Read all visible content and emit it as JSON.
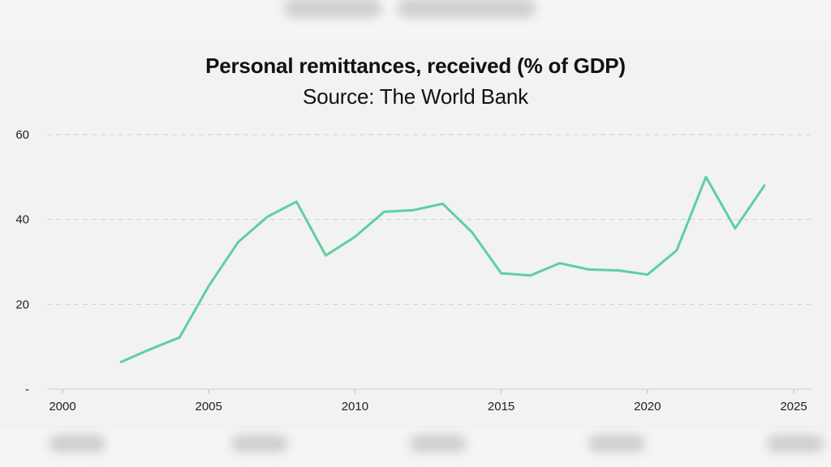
{
  "chart_data": {
    "type": "line",
    "title": "Personal remittances, received (% of GDP)",
    "subtitle": "Source: The World Bank",
    "xlabel": "",
    "ylabel": "",
    "xlim": [
      2000,
      2025
    ],
    "ylim": [
      0,
      60
    ],
    "x_ticks": [
      "2000",
      "2005",
      "2010",
      "2015",
      "2020",
      "2025"
    ],
    "y_ticks": [
      "-",
      "20",
      "40",
      "60"
    ],
    "grid": "horizontal-dashed",
    "legend": "none",
    "line_color": "#5fcf9f",
    "x": [
      2002,
      2003,
      2004,
      2005,
      2006,
      2007,
      2008,
      2009,
      2010,
      2011,
      2012,
      2013,
      2014,
      2015,
      2016,
      2017,
      2018,
      2019,
      2020,
      2021,
      2022,
      2023,
      2024
    ],
    "values": [
      6.4,
      9.4,
      12.2,
      24.3,
      34.6,
      40.6,
      44.2,
      31.5,
      35.9,
      41.8,
      42.2,
      43.7,
      37.0,
      27.3,
      26.8,
      29.7,
      28.2,
      28.0,
      27.0,
      32.7,
      50.0,
      37.9,
      48.0
    ]
  }
}
